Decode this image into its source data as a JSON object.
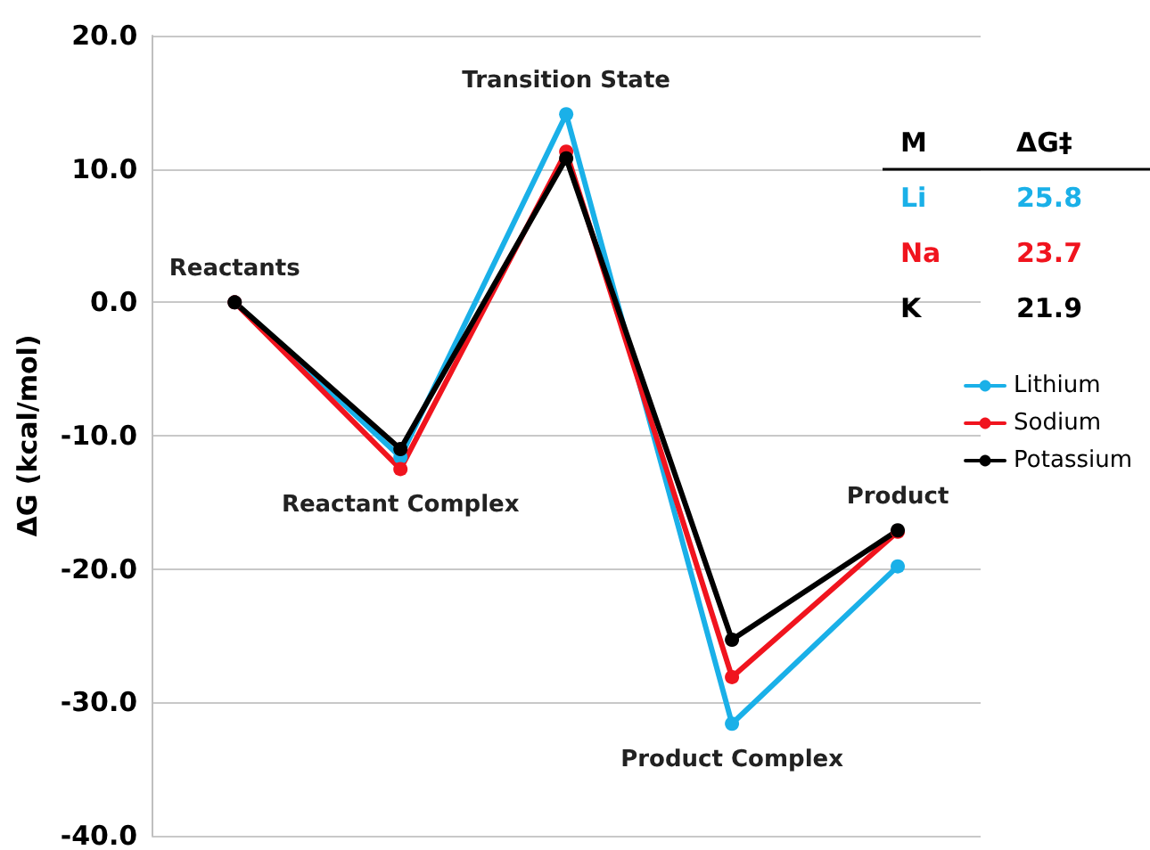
{
  "chart_data": {
    "type": "line",
    "categories": [
      "Reactants",
      "Reactant Complex",
      "Transition State",
      "Product Complex",
      "Product"
    ],
    "series": [
      {
        "name": "Lithium",
        "color": "#1ab0e8",
        "values": [
          0,
          -11.6,
          14.1,
          -31.6,
          -19.8
        ]
      },
      {
        "name": "Sodium",
        "color": "#f0141e",
        "values": [
          0,
          -12.5,
          11.3,
          -28.1,
          -17.2
        ]
      },
      {
        "name": "Potassium",
        "color": "#000000",
        "values": [
          0,
          -11.0,
          10.8,
          -25.3,
          -17.1
        ]
      }
    ],
    "ylabel": "ΔG (kcal/mol)",
    "ylim": [
      -40,
      20
    ],
    "yticks": [
      {
        "value": -40,
        "label": "-40.0"
      },
      {
        "value": -30,
        "label": "-30.0"
      },
      {
        "value": -20,
        "label": "-20.0"
      },
      {
        "value": -10,
        "label": "-10.0"
      },
      {
        "value": 0,
        "label": "0.0"
      },
      {
        "value": 10,
        "label": "10.0"
      },
      {
        "value": 20,
        "label": "20.0"
      }
    ],
    "annotations": [
      "M",
      "ΔG‡",
      "Li",
      "25.8",
      "Na",
      "23.7",
      "K",
      "21.9"
    ],
    "tick_labels": "y",
    "grid": "y",
    "legend": "right",
    "marker": "circle",
    "line_style": "solid"
  }
}
